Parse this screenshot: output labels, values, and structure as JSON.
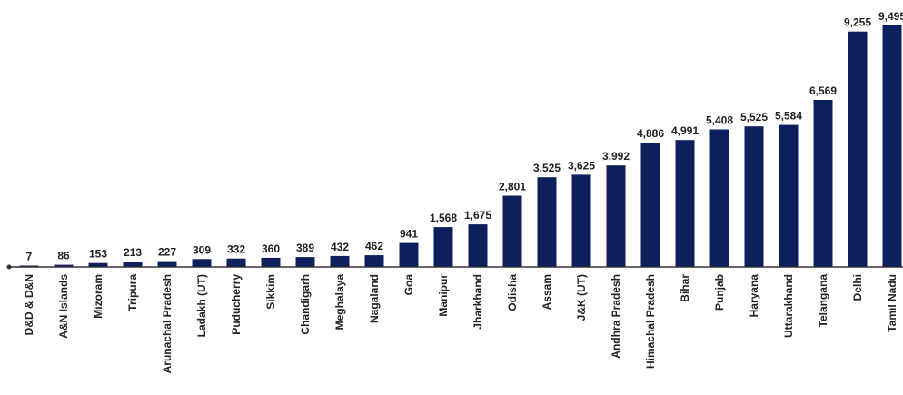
{
  "chart_data": {
    "type": "bar",
    "title": "",
    "xlabel": "",
    "ylabel": "",
    "categories": [
      "D&D & D&N",
      "A&N Islands",
      "Mizoram",
      "Tripura",
      "Arunachal Pradesh",
      "Ladakh (UT)",
      "Puducherry",
      "Sikkim",
      "Chandigarh",
      "Meghalaya",
      "Nagaland",
      "Goa",
      "Manipur",
      "Jharkhand",
      "Odisha",
      "Assam",
      "J&K (UT)",
      "Andhra Pradesh",
      "Himachal Pradesh",
      "Bihar",
      "Punjab",
      "Haryana",
      "Uttarakhand",
      "Telangana",
      "Delhi",
      "Tamil Nadu"
    ],
    "values": [
      7,
      86,
      153,
      213,
      227,
      309,
      332,
      360,
      389,
      432,
      462,
      941,
      1568,
      1675,
      2801,
      3525,
      3625,
      3992,
      4886,
      4991,
      5408,
      5525,
      5584,
      6569,
      9255,
      9495
    ],
    "value_labels": [
      "7",
      "86",
      "153",
      "213",
      "227",
      "309",
      "332",
      "360",
      "389",
      "432",
      "462",
      "941",
      "1,568",
      "1,675",
      "2,801",
      "3,525",
      "3,625",
      "3,992",
      "4,886",
      "4,991",
      "5,408",
      "5,525",
      "5,584",
      "6,569",
      "9,255",
      "9,495"
    ],
    "ylim": [
      0,
      9495
    ],
    "grid": false,
    "legend": "none",
    "bar_color": "#0d1f5c"
  }
}
